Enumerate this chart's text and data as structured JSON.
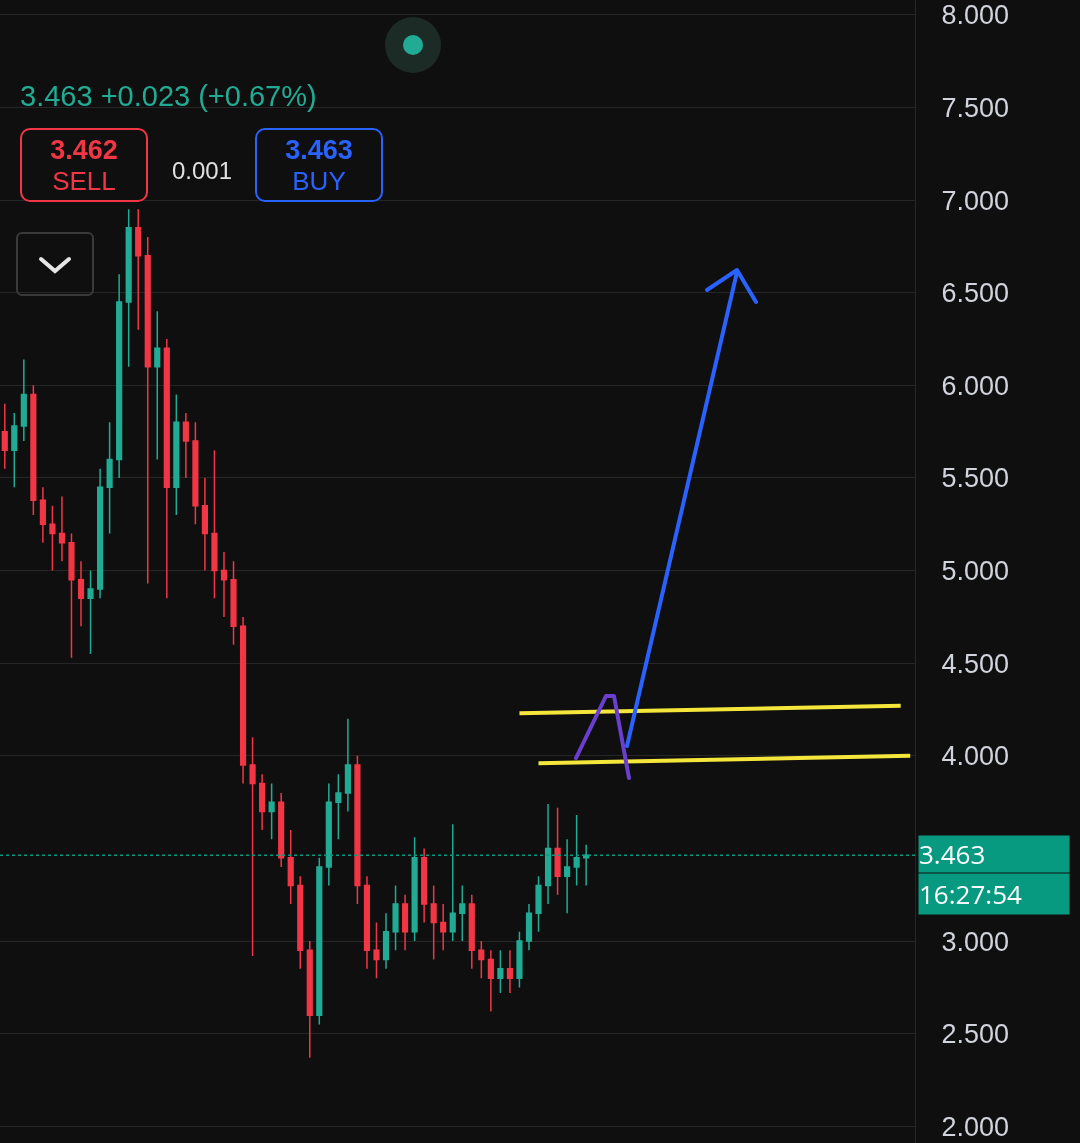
{
  "chart_data": {
    "type": "candlestick",
    "subtitle": "3.463 +0.023 (+0.67%)",
    "annotations": [
      "3.462",
      "SELL",
      "0.001",
      "3.463",
      "BUY",
      "16:27:54"
    ],
    "categories": [
      null,
      null,
      null,
      null,
      null,
      null,
      null,
      null,
      null,
      null,
      null,
      null,
      null,
      null,
      null,
      null,
      null,
      null,
      null,
      null,
      null,
      null,
      null,
      null,
      null,
      null,
      null,
      null,
      null,
      null,
      null,
      null,
      null,
      null,
      null,
      null,
      null,
      null,
      null,
      null,
      null,
      null,
      null,
      null,
      null,
      null,
      null,
      null,
      null,
      null,
      null,
      null,
      null,
      null,
      null,
      null,
      null,
      null,
      null,
      null,
      null,
      null,
      null,
      null,
      null,
      null,
      null,
      null,
      null,
      null,
      null,
      null,
      null,
      null,
      null,
      null,
      null,
      null,
      null,
      null,
      null,
      null,
      null,
      null,
      null,
      null,
      null,
      null,
      null,
      null,
      null,
      null,
      null,
      null,
      null,
      null
    ],
    "ohlc": [
      [
        5.75,
        5.9,
        5.55,
        5.65
      ],
      [
        5.65,
        5.85,
        5.45,
        5.78
      ],
      [
        5.78,
        6.14,
        5.7,
        5.95
      ],
      [
        5.95,
        6.0,
        5.3,
        5.38
      ],
      [
        5.38,
        5.45,
        5.15,
        5.25
      ],
      [
        5.25,
        5.35,
        5.0,
        5.2
      ],
      [
        5.2,
        5.4,
        5.05,
        5.15
      ],
      [
        5.15,
        5.2,
        4.53,
        4.95
      ],
      [
        4.95,
        5.05,
        4.7,
        4.85
      ],
      [
        4.85,
        5.0,
        4.55,
        4.9
      ],
      [
        4.9,
        5.55,
        4.85,
        5.45
      ],
      [
        5.45,
        5.8,
        5.2,
        5.6
      ],
      [
        5.6,
        6.6,
        5.5,
        6.45
      ],
      [
        6.45,
        6.95,
        6.1,
        6.85
      ],
      [
        6.85,
        6.95,
        6.3,
        6.7
      ],
      [
        6.7,
        6.8,
        4.93,
        6.1
      ],
      [
        6.1,
        6.4,
        5.6,
        6.2
      ],
      [
        6.2,
        6.25,
        4.85,
        5.45
      ],
      [
        5.45,
        5.95,
        5.3,
        5.8
      ],
      [
        5.8,
        5.85,
        5.5,
        5.7
      ],
      [
        5.7,
        5.8,
        5.25,
        5.35
      ],
      [
        5.35,
        5.5,
        5.0,
        5.2
      ],
      [
        5.2,
        5.65,
        4.85,
        5.0
      ],
      [
        5.0,
        5.1,
        4.75,
        4.95
      ],
      [
        4.95,
        5.05,
        4.6,
        4.7
      ],
      [
        4.7,
        4.75,
        3.85,
        3.95
      ],
      [
        3.95,
        4.1,
        2.92,
        3.85
      ],
      [
        3.85,
        3.9,
        3.6,
        3.7
      ],
      [
        3.7,
        3.85,
        3.55,
        3.75
      ],
      [
        3.75,
        3.8,
        3.4,
        3.45
      ],
      [
        3.45,
        3.6,
        3.2,
        3.3
      ],
      [
        3.3,
        3.35,
        2.85,
        2.95
      ],
      [
        2.95,
        3.0,
        2.37,
        2.6
      ],
      [
        2.6,
        3.45,
        2.55,
        3.4
      ],
      [
        3.4,
        3.85,
        3.3,
        3.75
      ],
      [
        3.75,
        3.9,
        3.55,
        3.8
      ],
      [
        3.8,
        4.2,
        3.7,
        3.95
      ],
      [
        3.95,
        4.0,
        3.2,
        3.3
      ],
      [
        3.3,
        3.35,
        2.85,
        2.95
      ],
      [
        2.95,
        3.1,
        2.8,
        2.9
      ],
      [
        2.9,
        3.15,
        2.85,
        3.05
      ],
      [
        3.05,
        3.3,
        2.95,
        3.2
      ],
      [
        3.2,
        3.25,
        2.95,
        3.05
      ],
      [
        3.05,
        3.56,
        3.0,
        3.45
      ],
      [
        3.45,
        3.5,
        3.1,
        3.2
      ],
      [
        3.2,
        3.3,
        2.9,
        3.1
      ],
      [
        3.1,
        3.2,
        2.95,
        3.05
      ],
      [
        3.05,
        3.63,
        3.0,
        3.15
      ],
      [
        3.15,
        3.3,
        3.0,
        3.2
      ],
      [
        3.2,
        3.25,
        2.85,
        2.95
      ],
      [
        2.95,
        3.0,
        2.8,
        2.9
      ],
      [
        2.9,
        2.95,
        2.62,
        2.8
      ],
      [
        2.8,
        2.95,
        2.72,
        2.85
      ],
      [
        2.85,
        2.95,
        2.72,
        2.8
      ],
      [
        2.8,
        3.05,
        2.75,
        3.0
      ],
      [
        3.0,
        3.2,
        2.95,
        3.15
      ],
      [
        3.15,
        3.35,
        3.05,
        3.3
      ],
      [
        3.3,
        3.74,
        3.2,
        3.5
      ],
      [
        3.5,
        3.72,
        3.25,
        3.35
      ],
      [
        3.35,
        3.55,
        3.15,
        3.4
      ],
      [
        3.4,
        3.68,
        3.3,
        3.45
      ],
      [
        3.45,
        3.52,
        3.3,
        3.463
      ],
      null,
      null,
      null,
      null,
      null,
      null,
      null,
      null,
      null,
      null,
      null,
      null,
      null,
      null,
      null,
      null,
      null,
      null,
      null,
      null,
      null,
      null,
      null,
      null,
      null,
      null,
      null,
      null,
      null,
      null,
      null,
      null,
      null,
      null
    ],
    "series": [
      {
        "type": "line",
        "color": "#f5e63b",
        "values": [
          null,
          null,
          null,
          null,
          null,
          null,
          null,
          null,
          null,
          null,
          null,
          null,
          null,
          null,
          null,
          null,
          null,
          null,
          null,
          null,
          null,
          null,
          null,
          null,
          null,
          null,
          null,
          null,
          null,
          null,
          null,
          null,
          null,
          null,
          null,
          null,
          null,
          null,
          null,
          null,
          null,
          null,
          null,
          null,
          null,
          null,
          null,
          null,
          null,
          null,
          null,
          null,
          null,
          null,
          4.23,
          null,
          null,
          null,
          null,
          null,
          null,
          null,
          null,
          null,
          null,
          null,
          null,
          null,
          null,
          null,
          null,
          null,
          null,
          null,
          null,
          null,
          null,
          null,
          null,
          null,
          null,
          null,
          null,
          null,
          null,
          null,
          null,
          null,
          null,
          null,
          null,
          null,
          null,
          null,
          4.27,
          null
        ]
      },
      {
        "type": "line",
        "color": "#f5e63b",
        "values": [
          null,
          null,
          null,
          null,
          null,
          null,
          null,
          null,
          null,
          null,
          null,
          null,
          null,
          null,
          null,
          null,
          null,
          null,
          null,
          null,
          null,
          null,
          null,
          null,
          null,
          null,
          null,
          null,
          null,
          null,
          null,
          null,
          null,
          null,
          null,
          null,
          null,
          null,
          null,
          null,
          null,
          null,
          null,
          null,
          null,
          null,
          null,
          null,
          null,
          null,
          null,
          null,
          null,
          null,
          null,
          null,
          3.96,
          null,
          null,
          null,
          null,
          null,
          null,
          null,
          null,
          null,
          null,
          null,
          null,
          null,
          null,
          null,
          null,
          null,
          null,
          null,
          null,
          null,
          null,
          null,
          null,
          null,
          null,
          null,
          null,
          null,
          null,
          null,
          null,
          null,
          null,
          null,
          null,
          null,
          null,
          4.0
        ]
      }
    ],
    "line_style": "solid",
    "marker": "none",
    "ylim": [
      1.91,
      8.08
    ],
    "yticks": [
      {
        "value": 2,
        "label": "2.000"
      },
      {
        "value": 2.5,
        "label": "2.500"
      },
      {
        "value": 3,
        "label": "3.000"
      },
      {
        "value": 4,
        "label": "4.000"
      },
      {
        "value": 4.5,
        "label": "4.500"
      },
      {
        "value": 5,
        "label": "5.000"
      },
      {
        "value": 5.5,
        "label": "5.500"
      },
      {
        "value": 6,
        "label": "6.000"
      },
      {
        "value": 6.5,
        "label": "6.500"
      },
      {
        "value": 7,
        "label": "7.000"
      },
      {
        "value": 7.5,
        "label": "7.500"
      },
      {
        "value": 8,
        "label": "8.000"
      }
    ],
    "ref_lines": [
      {
        "axis": "y",
        "value": 3.463,
        "label": "3.463",
        "color": "#089981",
        "line_style": "dotted"
      }
    ],
    "grid": "y",
    "tick_labels": "y"
  }
}
